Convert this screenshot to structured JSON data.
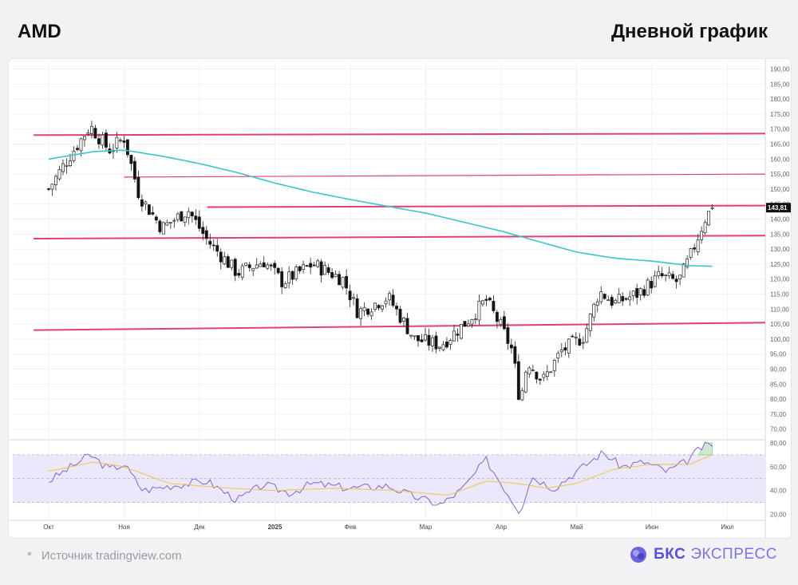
{
  "header": {
    "ticker": "AMD",
    "chart_period": "Дневной график"
  },
  "footer": {
    "source": "Источник tradingview.com",
    "brand_bold": "БКС",
    "brand_light": "ЭКСПРЕСС"
  },
  "colors": {
    "level_line": "#e0407a",
    "ma_line": "#3cc4cc",
    "rsi_line": "#8a6fd6",
    "rsi_ma": "#e8c84a",
    "rsi_band": "#ece8fb",
    "candle_up_fill": "#ffffff",
    "candle_down_fill": "#111111",
    "price_tag_bg": "#111111",
    "rsi_overbought_fill": "#cfe8d0"
  },
  "chart_data": [
    {
      "type": "candlestick",
      "xlabel": "",
      "ylabel": "",
      "x_tick_labels": [
        "Окт",
        "Ноя",
        "Дек",
        "2025",
        "Фев",
        "Мар",
        "Апр",
        "Май",
        "Июн",
        "Июл"
      ],
      "y_tick_labels": [
        "70,00",
        "75,00",
        "80,00",
        "85,00",
        "90,00",
        "95,00",
        "100,00",
        "105,00",
        "110,00",
        "115,00",
        "120,00",
        "125,00",
        "130,00",
        "135,00",
        "140,00",
        "145,00",
        "150,00",
        "155,00",
        "160,00",
        "165,00",
        "170,00",
        "175,00",
        "180,00",
        "185,00",
        "190,00"
      ],
      "ylim": [
        67,
        192
      ],
      "current_price_label": "143,81",
      "close_anchors": [
        {
          "m": 0.0,
          "v": 150
        },
        {
          "m": 0.25,
          "v": 160
        },
        {
          "m": 0.55,
          "v": 171
        },
        {
          "m": 0.8,
          "v": 163
        },
        {
          "m": 1.0,
          "v": 167
        },
        {
          "m": 1.2,
          "v": 148
        },
        {
          "m": 1.5,
          "v": 137
        },
        {
          "m": 1.85,
          "v": 143
        },
        {
          "m": 2.1,
          "v": 133
        },
        {
          "m": 2.5,
          "v": 122
        },
        {
          "m": 2.85,
          "v": 126
        },
        {
          "m": 3.1,
          "v": 119
        },
        {
          "m": 3.5,
          "v": 125
        },
        {
          "m": 3.9,
          "v": 120
        },
        {
          "m": 4.1,
          "v": 109
        },
        {
          "m": 4.5,
          "v": 114
        },
        {
          "m": 4.85,
          "v": 100
        },
        {
          "m": 5.2,
          "v": 98
        },
        {
          "m": 5.55,
          "v": 106
        },
        {
          "m": 5.8,
          "v": 113
        },
        {
          "m": 6.0,
          "v": 104
        },
        {
          "m": 6.15,
          "v": 96
        },
        {
          "m": 6.25,
          "v": 79
        },
        {
          "m": 6.35,
          "v": 93
        },
        {
          "m": 6.55,
          "v": 86
        },
        {
          "m": 6.8,
          "v": 96
        },
        {
          "m": 7.1,
          "v": 101
        },
        {
          "m": 7.3,
          "v": 116
        },
        {
          "m": 7.5,
          "v": 112
        },
        {
          "m": 7.8,
          "v": 115
        },
        {
          "m": 8.1,
          "v": 121
        },
        {
          "m": 8.35,
          "v": 119
        },
        {
          "m": 8.5,
          "v": 127
        },
        {
          "m": 8.7,
          "v": 140
        },
        {
          "m": 8.8,
          "v": 143.81
        }
      ],
      "series": [
        {
          "type": "line",
          "points": [
            {
              "m": 0.0,
              "v": 160
            },
            {
              "m": 0.6,
              "v": 162.5
            },
            {
              "m": 1.0,
              "v": 163
            },
            {
              "m": 1.5,
              "v": 161
            },
            {
              "m": 2.0,
              "v": 158.5
            },
            {
              "m": 2.5,
              "v": 155.5
            },
            {
              "m": 3.0,
              "v": 152
            },
            {
              "m": 3.5,
              "v": 149
            },
            {
              "m": 4.0,
              "v": 146.5
            },
            {
              "m": 5.0,
              "v": 142
            },
            {
              "m": 6.0,
              "v": 136
            },
            {
              "m": 6.5,
              "v": 132.5
            },
            {
              "m": 7.0,
              "v": 129
            },
            {
              "m": 7.5,
              "v": 127
            },
            {
              "m": 8.0,
              "v": 126
            },
            {
              "m": 8.5,
              "v": 124.5
            },
            {
              "m": 8.8,
              "v": 124.3
            }
          ]
        }
      ],
      "levels": [
        {
          "v1": 168,
          "v2": 168.5,
          "m1": -0.2,
          "m2": 9.5,
          "weight": "bold"
        },
        {
          "v1": 154,
          "v2": 155,
          "m1": 1.0,
          "m2": 9.5,
          "weight": "thin"
        },
        {
          "v1": 144,
          "v2": 144.5,
          "m1": 2.1,
          "m2": 9.5,
          "weight": "bold"
        },
        {
          "v1": 133.5,
          "v2": 134.5,
          "m1": -0.2,
          "m2": 9.5,
          "weight": "bold"
        },
        {
          "v1": 103,
          "v2": 105.5,
          "m1": -0.2,
          "m2": 9.5,
          "weight": "bold"
        }
      ]
    },
    {
      "type": "line",
      "xlabel": "",
      "ylabel": "",
      "y_tick_labels": [
        "20,00",
        "40,00",
        "60,00",
        "80,00"
      ],
      "ylim": [
        15,
        82
      ],
      "band": [
        30,
        70
      ],
      "midline": 50,
      "series": [
        {
          "type": "line",
          "points": [
            {
              "m": 0.0,
              "v": 48
            },
            {
              "m": 0.3,
              "v": 60
            },
            {
              "m": 0.55,
              "v": 70
            },
            {
              "m": 0.8,
              "v": 58
            },
            {
              "m": 1.0,
              "v": 62
            },
            {
              "m": 1.25,
              "v": 40
            },
            {
              "m": 1.6,
              "v": 44
            },
            {
              "m": 2.1,
              "v": 48
            },
            {
              "m": 2.5,
              "v": 32
            },
            {
              "m": 2.85,
              "v": 45
            },
            {
              "m": 3.2,
              "v": 38
            },
            {
              "m": 3.5,
              "v": 46
            },
            {
              "m": 4.0,
              "v": 42
            },
            {
              "m": 4.5,
              "v": 44
            },
            {
              "m": 4.8,
              "v": 36
            },
            {
              "m": 5.2,
              "v": 28
            },
            {
              "m": 5.5,
              "v": 42
            },
            {
              "m": 5.8,
              "v": 66
            },
            {
              "m": 6.0,
              "v": 46
            },
            {
              "m": 6.25,
              "v": 22
            },
            {
              "m": 6.4,
              "v": 52
            },
            {
              "m": 6.7,
              "v": 42
            },
            {
              "m": 7.0,
              "v": 56
            },
            {
              "m": 7.35,
              "v": 72
            },
            {
              "m": 7.6,
              "v": 60
            },
            {
              "m": 7.9,
              "v": 64
            },
            {
              "m": 8.2,
              "v": 56
            },
            {
              "m": 8.45,
              "v": 64
            },
            {
              "m": 8.65,
              "v": 76
            },
            {
              "m": 8.8,
              "v": 79
            }
          ]
        },
        {
          "type": "line",
          "points": [
            {
              "m": 0.0,
              "v": 56
            },
            {
              "m": 0.6,
              "v": 64
            },
            {
              "m": 1.0,
              "v": 60
            },
            {
              "m": 1.6,
              "v": 46
            },
            {
              "m": 2.4,
              "v": 42
            },
            {
              "m": 3.0,
              "v": 40
            },
            {
              "m": 3.8,
              "v": 42
            },
            {
              "m": 4.6,
              "v": 40
            },
            {
              "m": 5.3,
              "v": 36
            },
            {
              "m": 5.8,
              "v": 48
            },
            {
              "m": 6.2,
              "v": 46
            },
            {
              "m": 6.6,
              "v": 42
            },
            {
              "m": 7.0,
              "v": 46
            },
            {
              "m": 7.5,
              "v": 58
            },
            {
              "m": 8.0,
              "v": 62
            },
            {
              "m": 8.5,
              "v": 62
            },
            {
              "m": 8.8,
              "v": 70
            }
          ]
        }
      ]
    }
  ]
}
